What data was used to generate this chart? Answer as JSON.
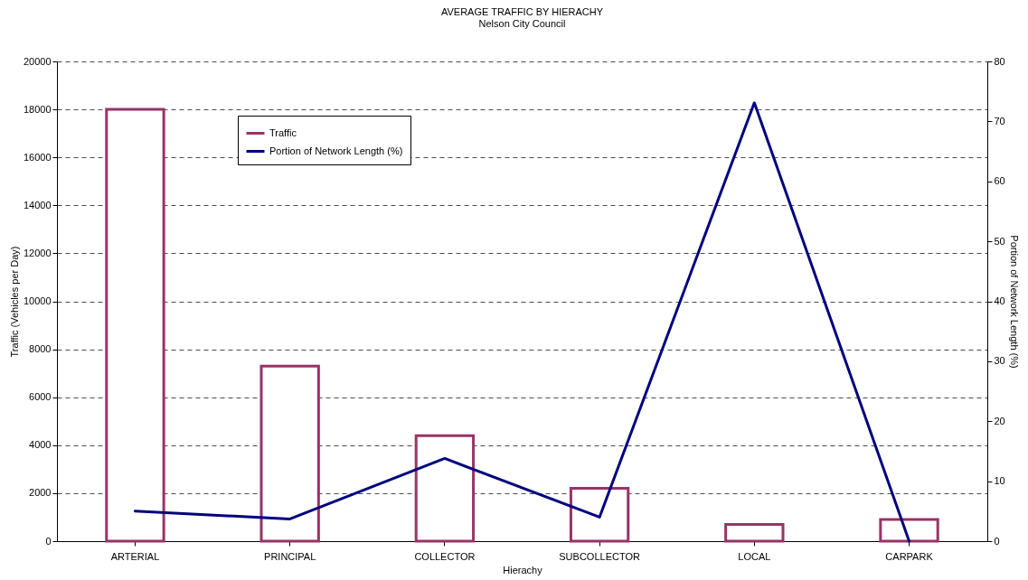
{
  "chart_data": {
    "type": "bar",
    "title": "AVERAGE TRAFFIC BY HIERACHY",
    "subtitle": "Nelson City Council",
    "xlabel": "Hierachy",
    "ylabel": "Traffic (Vehicles per Day)",
    "y2label": "Portion of Network Length (%)",
    "categories": [
      "ARTERIAL",
      "PRINCIPAL",
      "COLLECTOR",
      "SUBCOLLECTOR",
      "LOCAL",
      "CARPARK"
    ],
    "series": [
      {
        "name": "Traffic",
        "color": "#993366",
        "values": [
          18000,
          7300,
          4400,
          2200,
          700,
          900
        ]
      },
      {
        "name": "Portion of Network Length (%)",
        "type": "line",
        "axis": "y2",
        "color": "#000080",
        "values": [
          5,
          3.7,
          13.8,
          4,
          73.1,
          0
        ]
      }
    ],
    "ylim": [
      0,
      20000
    ],
    "yticks": [
      0,
      2000,
      4000,
      6000,
      8000,
      10000,
      12000,
      14000,
      16000,
      18000,
      20000
    ],
    "y2lim": [
      0,
      80
    ],
    "y2ticks": [
      0,
      10,
      20,
      30,
      40,
      50,
      60,
      70,
      80
    ],
    "grid": "y",
    "legend": "top left",
    "line_style": "solid"
  }
}
